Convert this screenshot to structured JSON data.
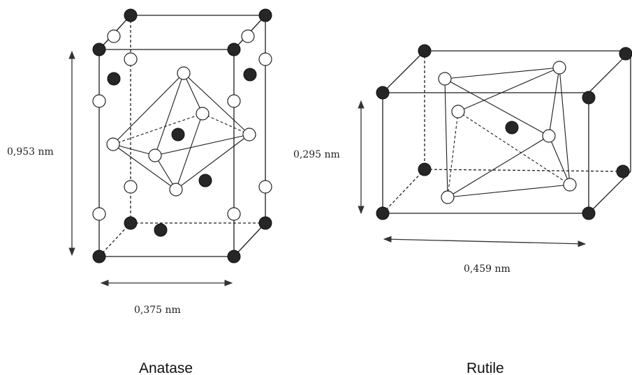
{
  "anatase": {
    "name": "Anatase",
    "height_label": "0,953 nm",
    "width_label": "0,375 nm"
  },
  "rutile": {
    "name": "Rutile",
    "height_label": "0,295 nm",
    "width_label": "0,459 nm"
  },
  "colors": {
    "titanium_atom": "#262626",
    "oxygen_atom": "#ffffff",
    "lines": "#1c1c1c"
  }
}
